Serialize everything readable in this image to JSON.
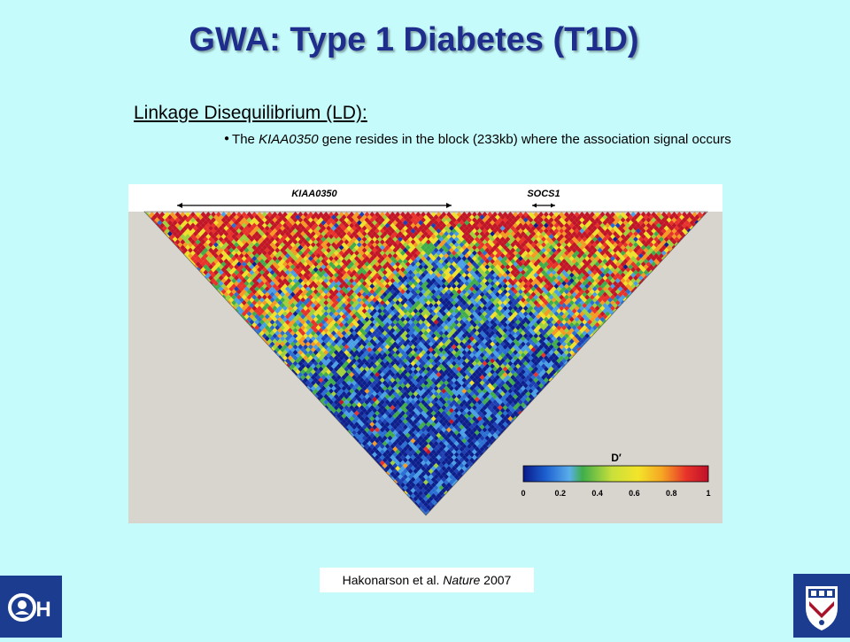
{
  "slide": {
    "title": "GWA: Type 1 Diabetes (T1D)",
    "heading": "Linkage Disequilibrium (LD):",
    "bullet": {
      "prefix": "The ",
      "gene": "KIAA0350",
      "suffix": " gene resides in the block (233kb) where the association signal occurs"
    }
  },
  "figure": {
    "gene_labels": [
      "KIAA0350",
      "SOCS1"
    ],
    "legend": {
      "title": "D′",
      "ticks": [
        "0",
        "0.2",
        "0.4",
        "0.6",
        "0.8",
        "1"
      ],
      "colors": [
        "#0a1a8a",
        "#1d5fd0",
        "#5aaeea",
        "#3fae4a",
        "#c9e03a",
        "#f3e42a",
        "#f5a623",
        "#e8332a",
        "#c0102a"
      ]
    },
    "colors": {
      "background": "#d8d5cf",
      "high_ld": "#e0201f",
      "low_ld": "#1b2f9e"
    }
  },
  "citation": {
    "authors": "Hakonarson et al. ",
    "journal": "Nature",
    "year": " 2007"
  },
  "logos": {
    "left_text": "H",
    "right_icon": "university-shield-icon"
  }
}
